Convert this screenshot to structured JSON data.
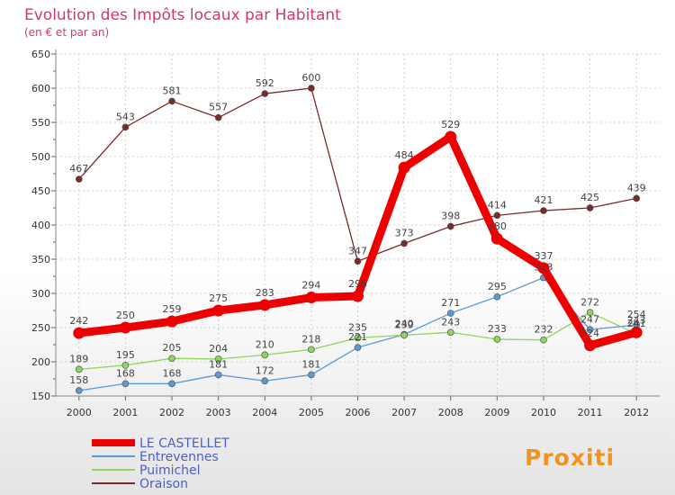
{
  "chart_data": {
    "type": "line",
    "title": "Evolution des Impôts locaux par Habitant",
    "subtitle": "(en € et par an)",
    "xlabel": "",
    "ylabel": "",
    "x": [
      "2000",
      "2001",
      "2002",
      "2003",
      "2004",
      "2005",
      "2006",
      "2007",
      "2008",
      "2009",
      "2010",
      "2011",
      "2012"
    ],
    "y_ticks": [
      "150",
      "200",
      "250",
      "300",
      "350",
      "400",
      "450",
      "500",
      "550",
      "600",
      "650"
    ],
    "ylim": [
      150,
      650
    ],
    "grid": true,
    "legend_position": "bottom-left",
    "series": [
      {
        "name": "Oraison",
        "color": "#7b2a2a",
        "values": [
          467,
          543,
          581,
          557,
          592,
          600,
          347,
          373,
          398,
          414,
          421,
          425,
          439
        ]
      },
      {
        "name": "Entrevennes",
        "color": "#5b9bd5",
        "values": [
          158,
          168,
          168,
          181,
          172,
          181,
          221,
          240,
          271,
          295,
          323,
          247,
          254
        ]
      },
      {
        "name": "Puimichel",
        "color": "#8ed65c",
        "values": [
          189,
          195,
          205,
          204,
          210,
          218,
          235,
          239,
          243,
          233,
          232,
          272,
          241
        ]
      },
      {
        "name": "LE CASTELLET",
        "color": "#ee0000",
        "values": [
          242,
          250,
          259,
          275,
          283,
          294,
          296,
          484,
          529,
          380,
          337,
          224,
          243
        ]
      }
    ],
    "legend": [
      "LE CASTELLET",
      "Entrevennes",
      "Puimichel",
      "Oraison"
    ]
  },
  "logo": {
    "text": "Proxiti"
  }
}
